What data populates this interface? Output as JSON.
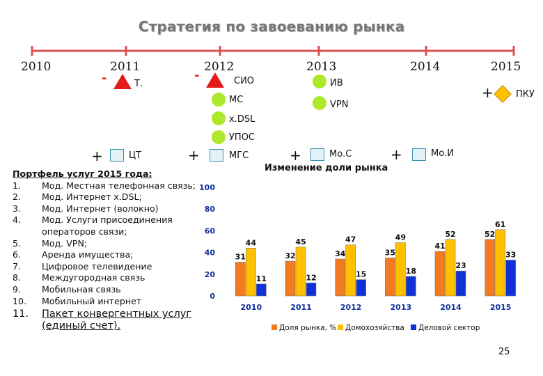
{
  "title": "Стратегия по завоеванию рынка",
  "timeline": {
    "years": [
      "2010",
      "2011",
      "2012",
      "2013",
      "2014",
      "2015"
    ]
  },
  "markers": {
    "t": {
      "sign": "-",
      "label": "Т."
    },
    "sio": {
      "sign": "-",
      "label": "СИО"
    },
    "iv": {
      "label": "ИВ"
    },
    "mc": {
      "label": "МС"
    },
    "vpn": {
      "label": "VPN"
    },
    "xdsl": {
      "label": "x.DSL"
    },
    "upos": {
      "label": "УПОС"
    },
    "pku": {
      "sign": "+",
      "label": "ПКУ"
    },
    "cht": {
      "sign": "+",
      "label": "ЦТ"
    },
    "mgs": {
      "sign": "+",
      "label": "МГС"
    },
    "moc": {
      "sign": "+",
      "label": "Мо.С"
    },
    "moi": {
      "sign": "+",
      "label": "Мо.И"
    }
  },
  "portfolio": {
    "heading": "Портфель услуг 2015 года:",
    "items": [
      {
        "num": "1.",
        "text": "Мод. Местная телефонная связь;"
      },
      {
        "num": "2.",
        "text": "Мод. Интернет x.DSL;"
      },
      {
        "num": "3.",
        "text": "Мод. Интернет (волокно)"
      },
      {
        "num": "4.",
        "text": "Мод. Услуги присоединения операторов связи;"
      },
      {
        "num": "5.",
        "text": "Мод. VPN;"
      },
      {
        "num": "6.",
        "text": "Аренда имущества;"
      },
      {
        "num": "7.",
        "text": "Цифровое телевидение"
      },
      {
        "num": "8.",
        "text": "Междугородная связь"
      },
      {
        "num": "9.",
        "text": "Мобильная связь"
      },
      {
        "num": "10.",
        "text": "Мобильный интернет"
      },
      {
        "num": "11.",
        "text": "Пакет конвергентных услуг (единый счет)."
      }
    ]
  },
  "page_number": "25",
  "colors": {
    "accent_red": "#e02020",
    "timeline": "#d9534f",
    "series_orange": "#f47a20",
    "series_yellow": "#ffc000",
    "series_blue": "#1030d8",
    "marker_green": "#aee82a",
    "marker_triangle": "#e41b1b",
    "marker_diamond": "#ffc000"
  },
  "chart_data": {
    "type": "bar",
    "title": "Изменение доли рынка",
    "categories": [
      "2010",
      "2011",
      "2012",
      "2013",
      "2014",
      "2015"
    ],
    "series": [
      {
        "name": "Доля рынка, %",
        "values": [
          31,
          32,
          34,
          35,
          41,
          52
        ],
        "color": "#f47a20"
      },
      {
        "name": "Домохозяйства",
        "values": [
          44,
          45,
          47,
          49,
          52,
          61
        ],
        "color": "#ffc000"
      },
      {
        "name": "Деловой сектор",
        "values": [
          11,
          12,
          15,
          18,
          23,
          33
        ],
        "color": "#1030d8"
      }
    ],
    "yticks": [
      "100",
      "80",
      "60",
      "40",
      "20",
      "0"
    ],
    "ylim": [
      0,
      100
    ],
    "grid": false,
    "legend": "bottom"
  }
}
